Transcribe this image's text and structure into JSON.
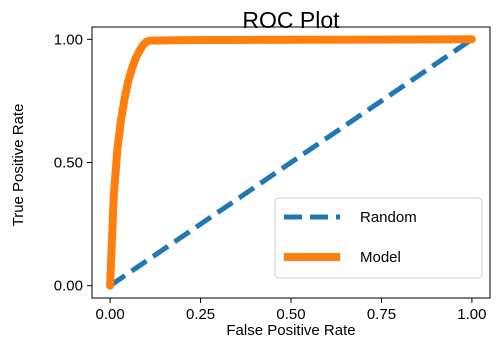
{
  "chart_data": {
    "type": "line",
    "title": "ROC Plot",
    "xlabel": "False Positive Rate",
    "ylabel": "True Positive Rate",
    "xlim": [
      -0.05,
      1.05
    ],
    "ylim": [
      -0.05,
      1.05
    ],
    "xticks": [
      0.0,
      0.25,
      0.5,
      0.75,
      1.0
    ],
    "xtick_labels": [
      "0.00",
      "0.25",
      "0.50",
      "0.75",
      "1.00"
    ],
    "yticks": [
      0.0,
      0.5,
      1.0
    ],
    "ytick_labels": [
      "0.00",
      "0.50",
      "1.00"
    ],
    "grid": false,
    "legend_position": "lower-right",
    "series": [
      {
        "name": "Random",
        "color": "#1f77b4",
        "style": "dashed",
        "x": [
          0.0,
          1.0
        ],
        "y": [
          0.0,
          1.0
        ]
      },
      {
        "name": "Model",
        "color": "#ff7f0e",
        "style": "solid",
        "x": [
          0.0,
          0.005,
          0.01,
          0.02,
          0.03,
          0.04,
          0.05,
          0.06,
          0.07,
          0.08,
          0.09,
          0.1,
          0.11,
          0.2,
          0.5,
          0.75,
          1.0
        ],
        "y": [
          0.0,
          0.18,
          0.36,
          0.55,
          0.67,
          0.76,
          0.83,
          0.88,
          0.92,
          0.95,
          0.975,
          0.99,
          0.995,
          0.997,
          0.998,
          0.999,
          1.0
        ]
      }
    ]
  }
}
